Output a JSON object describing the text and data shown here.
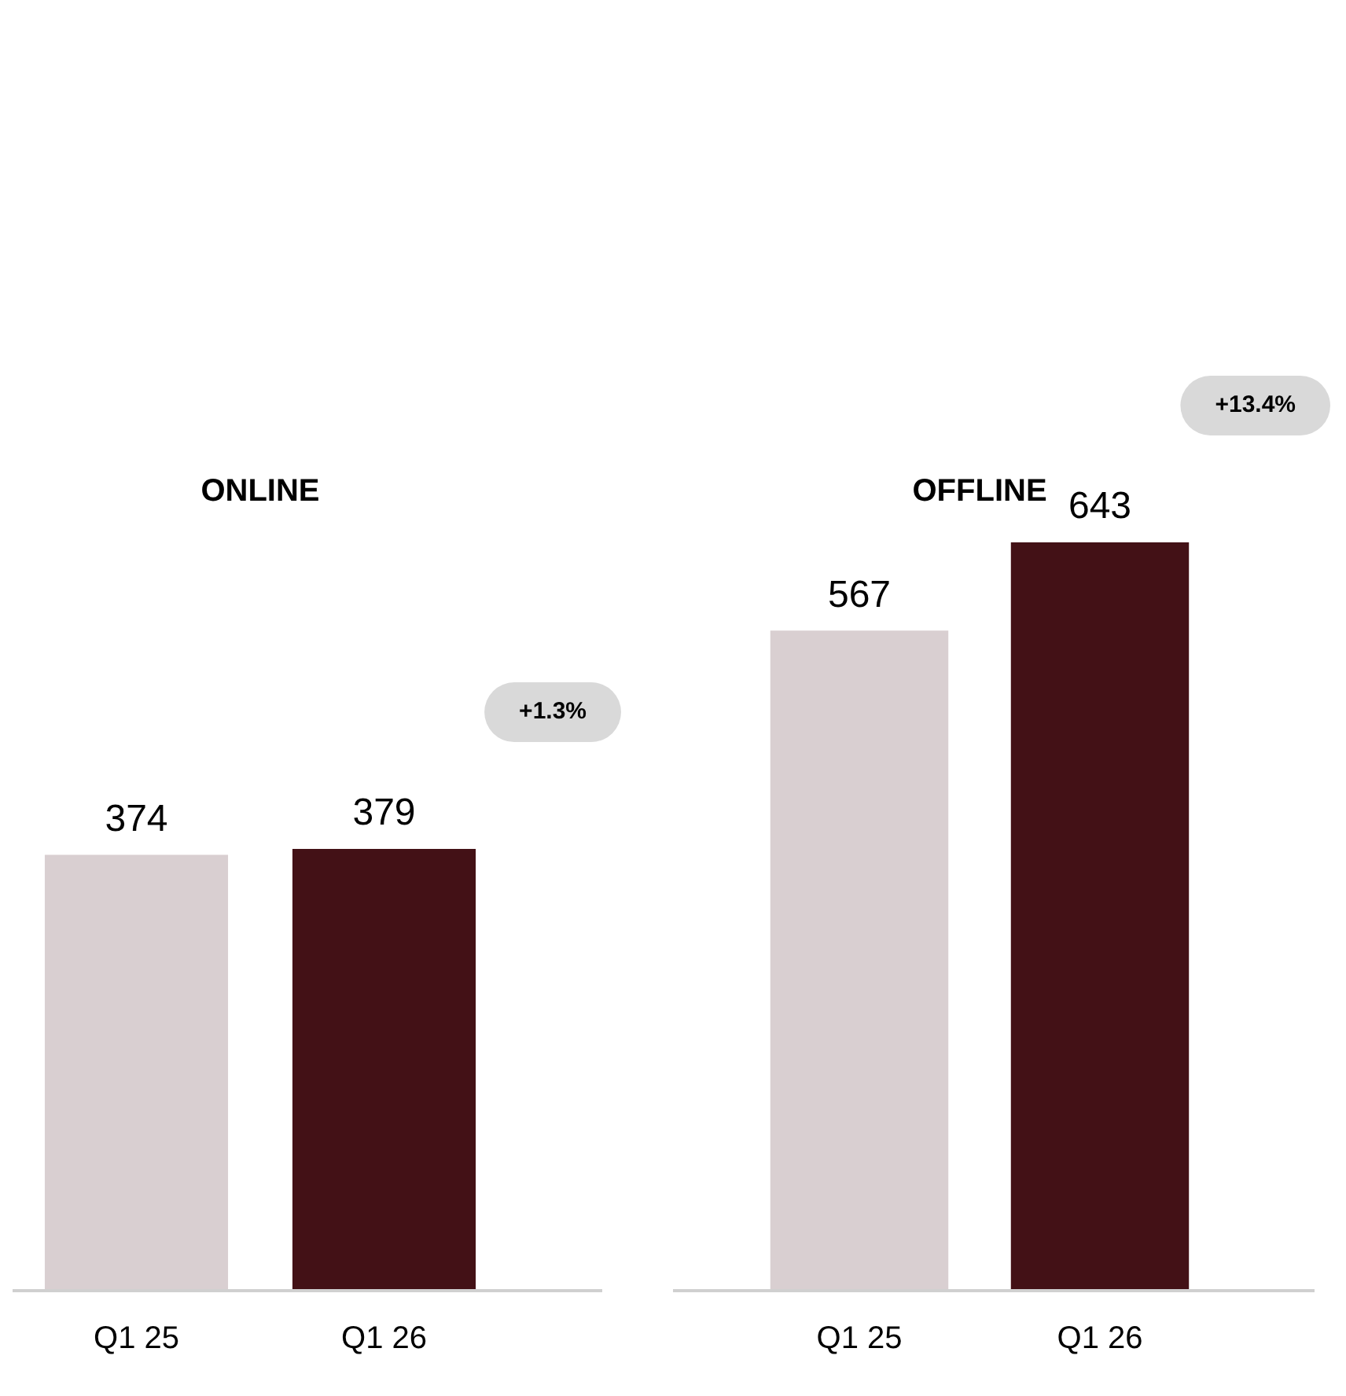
{
  "chart_data": [
    {
      "type": "bar",
      "title": "ONLINE",
      "categories": [
        "Q1 25",
        "Q1 26"
      ],
      "values": [
        374,
        379
      ],
      "colors": [
        "#d9cfd1",
        "#431116"
      ],
      "data_labels": true,
      "annotations": [
        "+1.3%"
      ],
      "tick_labels": "x",
      "grid": false,
      "legend": false
    },
    {
      "type": "bar",
      "title": "OFFLINE",
      "categories": [
        "Q1 25",
        "Q1 26"
      ],
      "values": [
        567,
        643
      ],
      "colors": [
        "#d9cfd1",
        "#431116"
      ],
      "data_labels": true,
      "annotations": [
        "+13.4%"
      ],
      "tick_labels": "x",
      "grid": false,
      "legend": false
    }
  ]
}
